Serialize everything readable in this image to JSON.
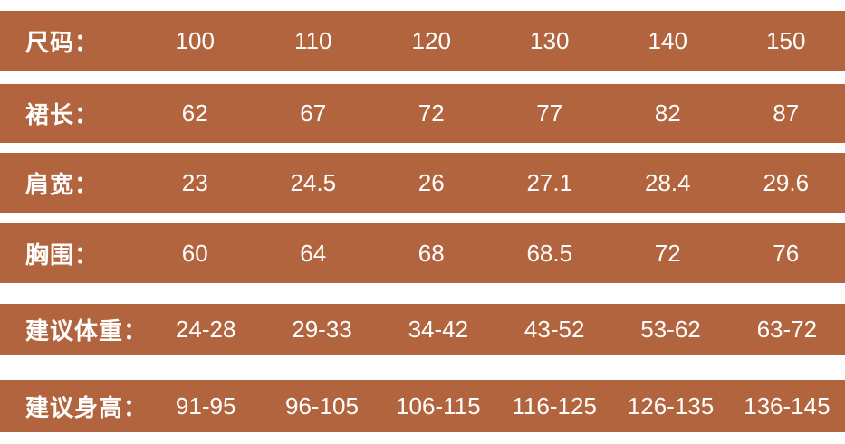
{
  "colors": {
    "band": "#b2643e",
    "text": "#ffffff",
    "background": "#ffffff"
  },
  "chart_data": {
    "type": "table",
    "title": "",
    "rows": [
      {
        "label": "尺码：",
        "values": [
          "100",
          "110",
          "120",
          "130",
          "140",
          "150"
        ]
      },
      {
        "label": "裙长：",
        "values": [
          "62",
          "67",
          "72",
          "77",
          "82",
          "87"
        ]
      },
      {
        "label": "肩宽：",
        "values": [
          "23",
          "24.5",
          "26",
          "27.1",
          "28.4",
          "29.6"
        ]
      },
      {
        "label": "胸围：",
        "values": [
          "60",
          "64",
          "68",
          "68.5",
          "72",
          "76"
        ]
      },
      {
        "label": "建议体重：",
        "values": [
          "24-28",
          "29-33",
          "34-42",
          "43-52",
          "53-62",
          "63-72"
        ]
      },
      {
        "label": "建议身高：",
        "values": [
          "91-95",
          "96-105",
          "106-115",
          "116-125",
          "126-135",
          "136-145"
        ]
      }
    ]
  }
}
